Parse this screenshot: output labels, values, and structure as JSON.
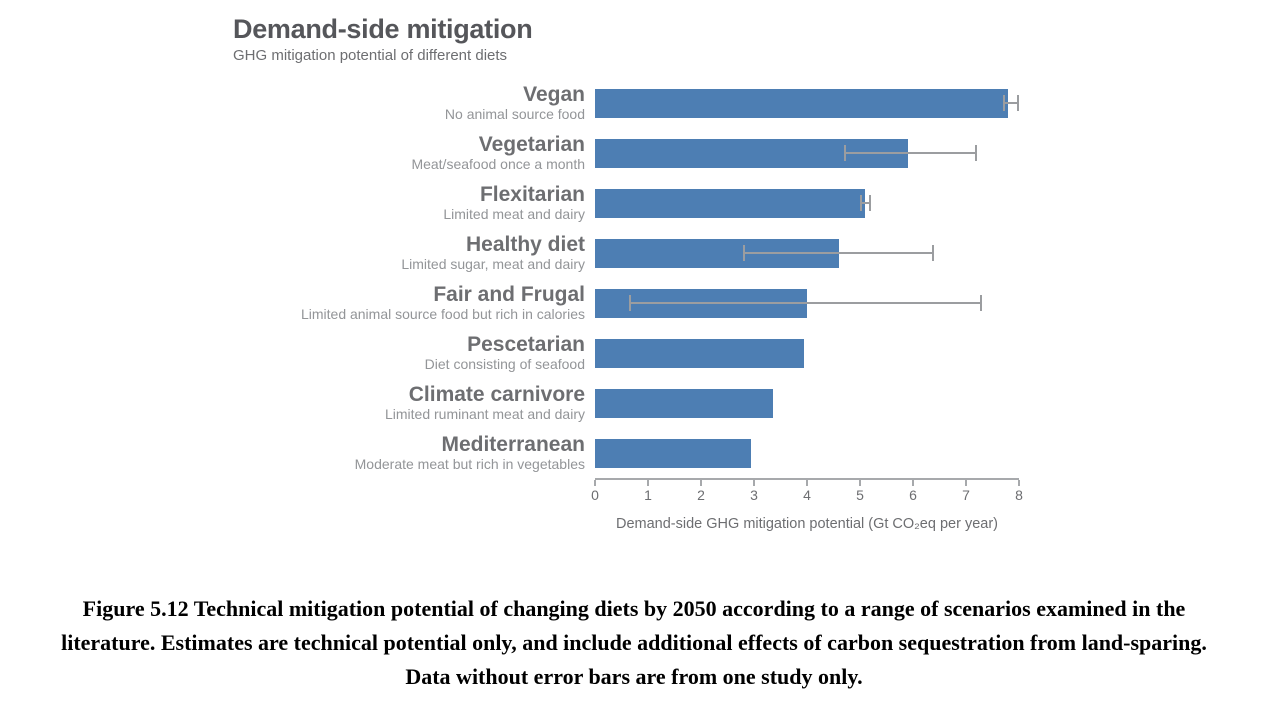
{
  "chart_data": {
    "type": "bar",
    "orientation": "horizontal",
    "title": "Demand-side mitigation",
    "subtitle": "GHG mitigation potential of different diets",
    "xlabel": "Demand-side GHG mitigation potential (Gt CO₂eq per year)",
    "xlim": [
      0,
      8
    ],
    "x_ticks": [
      0,
      1,
      2,
      3,
      4,
      5,
      6,
      7,
      8
    ],
    "grid": false,
    "legend": "none",
    "bar_color": "#4d7eb3",
    "error_bar_color": "#9b9da0",
    "rows": [
      {
        "label": "Vegan",
        "sublabel": "No animal source food",
        "value": 7.8,
        "error_low": 7.7,
        "error_high": 8.0
      },
      {
        "label": "Vegetarian",
        "sublabel": "Meat/seafood once a month",
        "value": 5.9,
        "error_low": 4.7,
        "error_high": 7.2
      },
      {
        "label": "Flexitarian",
        "sublabel": "Limited meat and dairy",
        "value": 5.1,
        "error_low": 5.0,
        "error_high": 5.2
      },
      {
        "label": "Healthy diet",
        "sublabel": "Limited sugar, meat and dairy",
        "value": 4.6,
        "error_low": 2.8,
        "error_high": 6.4
      },
      {
        "label": "Fair and Frugal",
        "sublabel": "Limited animal source food but rich in calories",
        "value": 4.0,
        "error_low": 0.65,
        "error_high": 7.3
      },
      {
        "label": "Pescetarian",
        "sublabel": "Diet consisting of seafood",
        "value": 3.95
      },
      {
        "label": "Climate carnivore",
        "sublabel": "Limited ruminant meat and dairy",
        "value": 3.35
      },
      {
        "label": "Mediterranean",
        "sublabel": "Moderate meat but rich in vegetables",
        "value": 2.95
      }
    ]
  },
  "caption": "Figure 5.12 Technical mitigation potential of changing diets by 2050 according to a range of scenarios examined in the literature. Estimates are technical potential only, and include additional effects of carbon sequestration from land-sparing. Data without error bars are from one study only."
}
